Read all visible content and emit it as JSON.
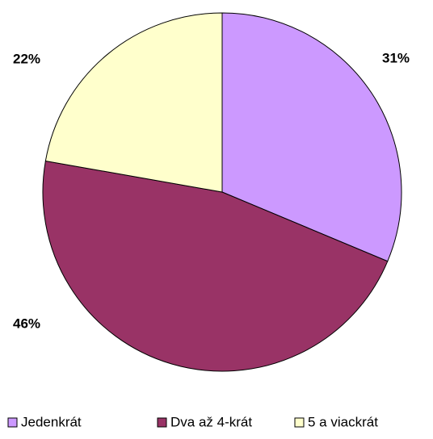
{
  "chart_data": {
    "type": "pie",
    "categories": [
      "Jedenkrát",
      "Dva až 4-krát",
      "5 a viackrát"
    ],
    "values": [
      31,
      46,
      22
    ],
    "value_labels": [
      "31%",
      "46%",
      "22%"
    ],
    "colors": [
      "#cc99ff",
      "#993366",
      "#ffffcc"
    ],
    "legend": "bottom"
  }
}
